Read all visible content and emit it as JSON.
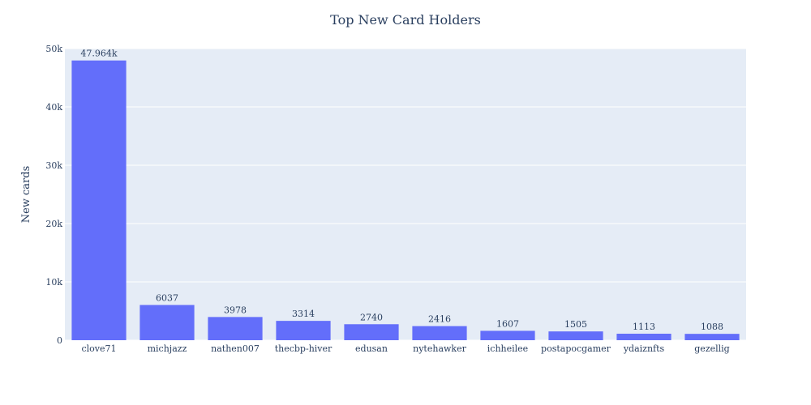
{
  "chart_data": {
    "type": "bar",
    "title": "Top New Card Holders",
    "xlabel": "",
    "ylabel": "New cards",
    "categories": [
      "clove71",
      "michjazz",
      "nathen007",
      "thecbp-hiver",
      "edusan",
      "nytehawker",
      "ichheilee",
      "postapocgamer",
      "ydaiznfts",
      "gezellig"
    ],
    "values": [
      47964,
      6037,
      3978,
      3314,
      2740,
      2416,
      1607,
      1505,
      1113,
      1088
    ],
    "value_labels": [
      "47.964k",
      "6037",
      "3978",
      "3314",
      "2740",
      "2416",
      "1607",
      "1505",
      "1113",
      "1088"
    ],
    "ylim": [
      0,
      50000
    ],
    "yticks": [
      0,
      10000,
      20000,
      30000,
      40000,
      50000
    ],
    "ytick_labels": [
      "0",
      "10k",
      "20k",
      "30k",
      "40k",
      "50k"
    ],
    "grid": true,
    "colors": {
      "bar": "#636efa",
      "plot_bg": "#e5ecf6",
      "grid": "#ffffff",
      "text": "#2a3f5f"
    }
  }
}
